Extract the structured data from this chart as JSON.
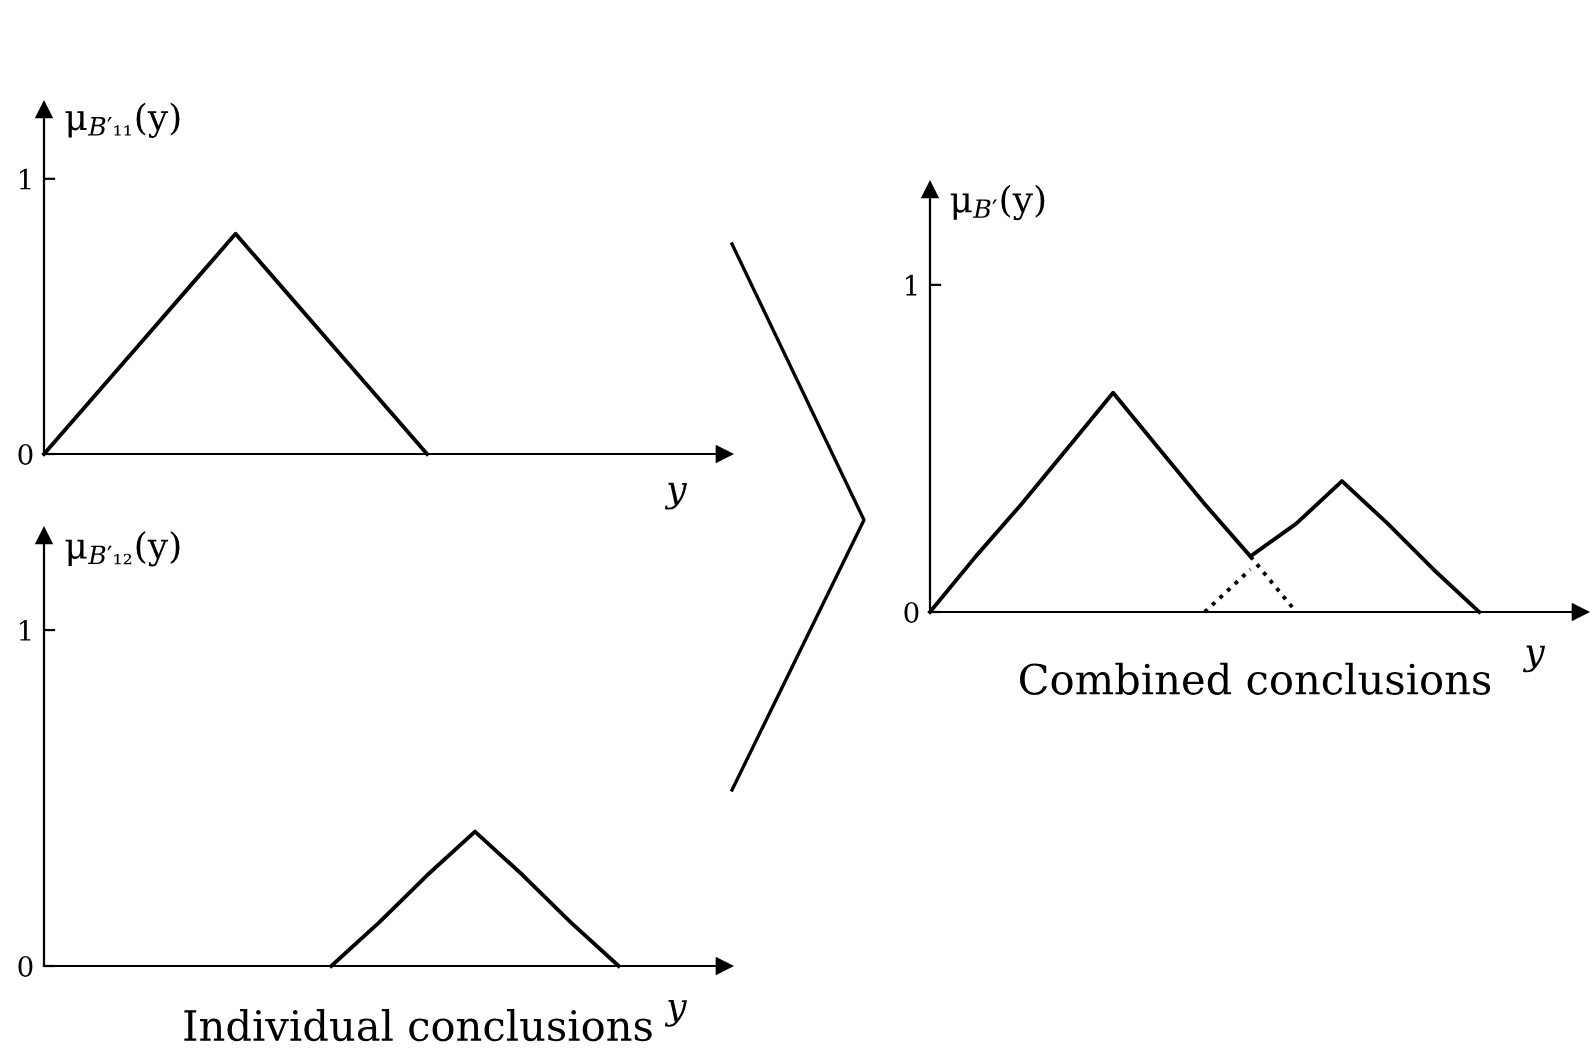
{
  "chart_data": [
    {
      "type": "line",
      "categories": [
        null,
        null,
        null,
        null,
        null,
        null,
        null,
        null,
        null,
        null,
        null,
        null,
        null,
        null,
        null
      ],
      "ylabel": "μ$_{B′₁₁}$(y)",
      "xlabel": "y",
      "ylim": [
        0,
        1.25
      ],
      "yticks": [
        0,
        1
      ],
      "tick_labels": "y",
      "grid": false,
      "series": [
        {
          "color": "#000000",
          "line_style": "solid",
          "values": [
            0,
            0.2,
            0.4,
            0.6,
            0.8,
            0.6,
            0.4,
            0.2,
            0,
            null,
            null,
            null,
            null,
            null,
            null
          ]
        }
      ]
    },
    {
      "type": "line",
      "categories": [
        null,
        null,
        null,
        null,
        null,
        null,
        null,
        null,
        null,
        null,
        null,
        null,
        null,
        null,
        null
      ],
      "ylabel": "μ$_{B′₁₂}$(y)",
      "xlabel": "y",
      "ylim": [
        0,
        1.28
      ],
      "yticks": [
        0,
        1
      ],
      "tick_labels": "y",
      "grid": false,
      "annotations": [
        "Individual conclusions"
      ],
      "series": [
        {
          "color": "#000000",
          "line_style": "solid",
          "values": [
            null,
            null,
            null,
            null,
            null,
            null,
            0,
            0.13,
            0.27,
            0.4,
            0.27,
            0.13,
            0,
            null,
            null
          ]
        }
      ]
    },
    {
      "type": "line",
      "categories": [
        null,
        null,
        null,
        null,
        null,
        null,
        null,
        null,
        null,
        null,
        null,
        null,
        null,
        null,
        null
      ],
      "ylabel": "μ$_{B′}$(y)",
      "xlabel": "y",
      "ylim": [
        0,
        1.29
      ],
      "yticks": [
        0,
        1
      ],
      "tick_labels": "y",
      "grid": false,
      "annotations": [
        "Combined conclusions"
      ],
      "series": [
        {
          "color": "#000000",
          "line_style": "solid",
          "values": [
            0,
            0.17,
            0.33,
            0.5,
            0.67,
            0.5,
            0.33,
            0.17,
            0.27,
            0.4,
            0.27,
            0.13,
            0,
            null,
            null
          ]
        },
        {
          "color": "#000000",
          "line_style": "dotted",
          "values": [
            null,
            null,
            null,
            null,
            null,
            null,
            null,
            0.17,
            0,
            null,
            null,
            null,
            null,
            null,
            null
          ]
        },
        {
          "color": "#000000",
          "line_style": "dotted",
          "values": [
            null,
            null,
            null,
            null,
            null,
            null,
            0,
            0.13,
            null,
            null,
            null,
            null,
            null,
            null,
            null
          ]
        }
      ]
    }
  ]
}
